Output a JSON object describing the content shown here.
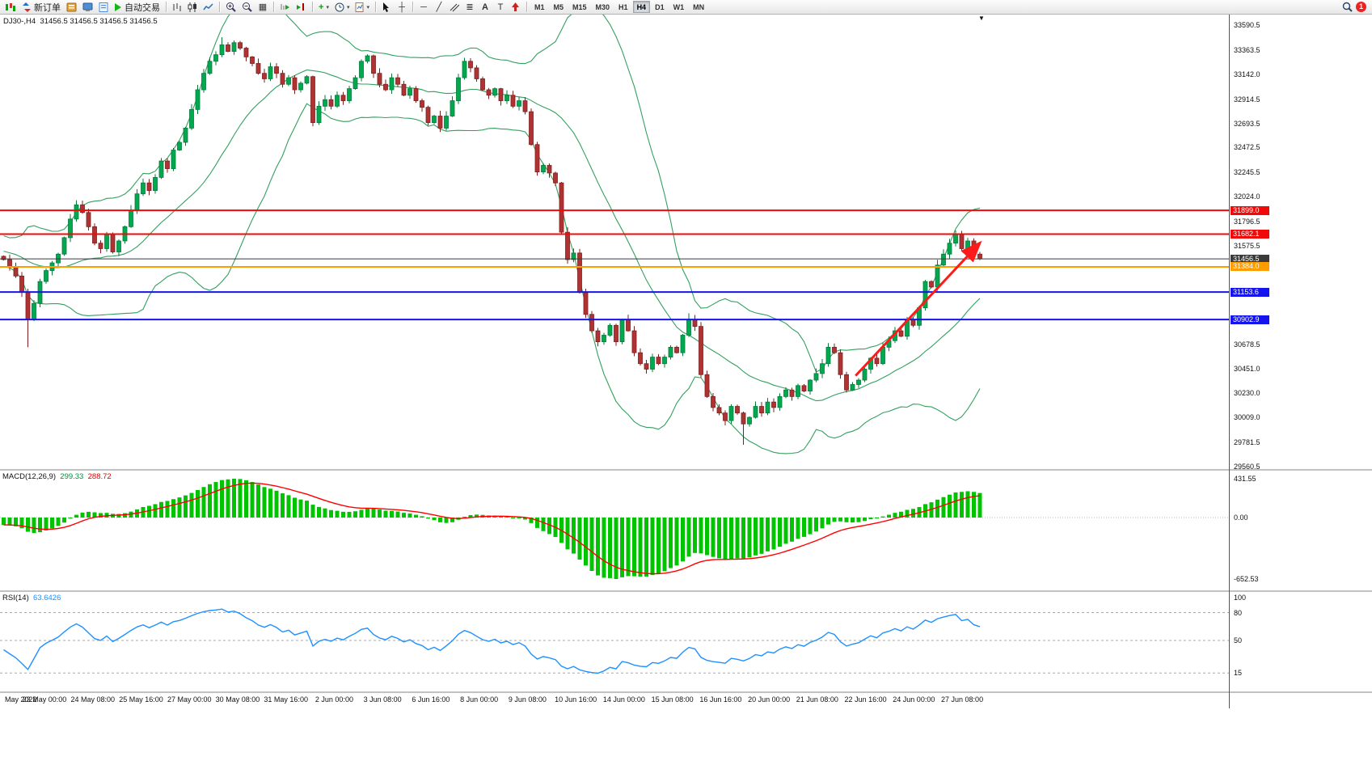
{
  "toolbar": {
    "new_order": "新订单",
    "auto_trading": "自动交易",
    "timeframes": [
      "M1",
      "M5",
      "M15",
      "M30",
      "H1",
      "H4",
      "D1",
      "W1",
      "MN"
    ],
    "active_timeframe": "H4",
    "notification_badge": "1"
  },
  "icons": {
    "caret": "▾",
    "tile_windows": "▦",
    "crosshair": "┼",
    "horizontal_line": "─",
    "trendline": "╱",
    "fibonacci": "≣",
    "text_tool": "A",
    "label_tool": "T",
    "indicators_plus": "+"
  },
  "chart": {
    "symbol_period": "DJ30-,H4",
    "ohlc": "31456.5 31456.5 31456.5 31456.5",
    "price_ticks": [
      33590.5,
      33363.5,
      33142.0,
      32914.5,
      32693.5,
      32472.5,
      32245.5,
      32024.0,
      31796.5,
      31575.5,
      30678.5,
      30451.0,
      30230.0,
      30009.0,
      29781.5,
      29560.5
    ],
    "levels": [
      {
        "price": 31899.0,
        "label": "31899.0",
        "color": "#f00a0a",
        "width": 2
      },
      {
        "price": 31682.1,
        "label": "31682.1",
        "color": "#f00a0a",
        "width": 2
      },
      {
        "price": 31456.5,
        "label": "31456.5",
        "color": "#3a3a3a",
        "width": 1
      },
      {
        "price": 31384.0,
        "label": "31384.0",
        "color": "#ff9d00",
        "width": 2
      },
      {
        "price": 31153.6,
        "label": "31153.6",
        "color": "#1414ee",
        "width": 2
      },
      {
        "price": 30902.9,
        "label": "30902.9",
        "color": "#1414ee",
        "width": 2
      }
    ],
    "time_labels": [
      "May 2022",
      "23 May 00:00",
      "24 May 08:00",
      "25 May 16:00",
      "27 May 00:00",
      "30 May 08:00",
      "31 May 16:00",
      "2 Jun 00:00",
      "3 Jun 08:00",
      "6 Jun 16:00",
      "8 Jun 00:00",
      "9 Jun 08:00",
      "10 Jun 16:00",
      "14 Jun 00:00",
      "15 Jun 08:00",
      "16 Jun 16:00",
      "20 Jun 00:00",
      "21 Jun 08:00",
      "22 Jun 16:00",
      "24 Jun 00:00",
      "27 Jun 08:00"
    ]
  },
  "chart_data": {
    "type": "candlestick",
    "symbol": "DJ30-",
    "timeframe": "H4",
    "axis_max": 33590.5,
    "axis_min": 29560.5,
    "preroll_closes": [
      31750,
      31800,
      31850,
      31900,
      31870,
      31820,
      31780,
      31830,
      31760,
      31700,
      31740,
      31680,
      31620,
      31660,
      31600,
      31550,
      31590,
      31530,
      31560,
      31500,
      31540,
      31480,
      31520,
      31460,
      31500,
      31450,
      31480,
      31430,
      31460,
      31480
    ],
    "closes": [
      31450,
      31380,
      31300,
      31150,
      30900,
      31050,
      31250,
      31350,
      31420,
      31500,
      31650,
      31820,
      31950,
      31880,
      31750,
      31600,
      31550,
      31680,
      31520,
      31620,
      31750,
      31900,
      32050,
      32150,
      32080,
      32200,
      32350,
      32280,
      32450,
      32520,
      32650,
      32820,
      33000,
      33150,
      33260,
      33320,
      33410,
      33350,
      33430,
      33380,
      33300,
      33240,
      33150,
      33100,
      33210,
      33150,
      33050,
      33110,
      33000,
      33060,
      33120,
      32700,
      32850,
      32910,
      32850,
      32950,
      32900,
      33010,
      33110,
      33260,
      33310,
      33150,
      33050,
      33000,
      33110,
      33050,
      32950,
      33010,
      32900,
      32840,
      32700,
      32760,
      32650,
      32760,
      32900,
      33110,
      33260,
      33200,
      33100,
      33000,
      32950,
      33010,
      32900,
      32950,
      32850,
      32900,
      32800,
      32500,
      32250,
      32310,
      32240,
      32150,
      31700,
      31450,
      31510,
      31150,
      30950,
      30800,
      30700,
      30760,
      30850,
      30700,
      30900,
      30800,
      30600,
      30500,
      30450,
      30560,
      30500,
      30560,
      30650,
      30600,
      30760,
      30900,
      30840,
      30400,
      30200,
      30100,
      30050,
      29980,
      30110,
      30050,
      29950,
      30010,
      30110,
      30050,
      30150,
      30100,
      30200,
      30260,
      30200,
      30300,
      30250,
      30350,
      30410,
      30500,
      30650,
      30600,
      30400,
      30260,
      30310,
      30350,
      30450,
      30550,
      30500,
      30650,
      30710,
      30800,
      30750,
      30900,
      30850,
      31010,
      31250,
      31200,
      31400,
      31500,
      31600,
      31680,
      31550,
      31620,
      31500,
      31456.5
    ],
    "wick_overrides": {
      "4": {
        "low": 30650
      },
      "36": {
        "high": 33480
      },
      "113": {
        "high": 30960
      },
      "122": {
        "low": 29760
      }
    },
    "trend_arrow": {
      "from_index": 140.5,
      "from_price": 30390,
      "to_index": 160.8,
      "to_price": 31590,
      "color": "#ff1a1a"
    },
    "bollinger": {
      "period": 20,
      "deviation": 2,
      "color": "#33a05f"
    },
    "colors": {
      "up": "#00a84f",
      "up_edge": "#067a3a",
      "down": "#b03333",
      "down_edge": "#7d1f1f"
    }
  },
  "macd": {
    "title": "MACD(12,26,9)",
    "value_main": "299.33",
    "value_signal": "288.72",
    "axis_labels": [
      "431.55",
      "0.00",
      "-652.53"
    ],
    "axis_values": [
      431.55,
      0,
      -652.53
    ],
    "fast": 12,
    "slow": 26,
    "signal": 9,
    "histogram_color": "#00c400",
    "signal_color": "#ff0000"
  },
  "rsi": {
    "title": "RSI(14)",
    "value": "63.6426",
    "period": 14,
    "levels": [
      100,
      80,
      50,
      15
    ],
    "line_color": "#1e90ff"
  }
}
